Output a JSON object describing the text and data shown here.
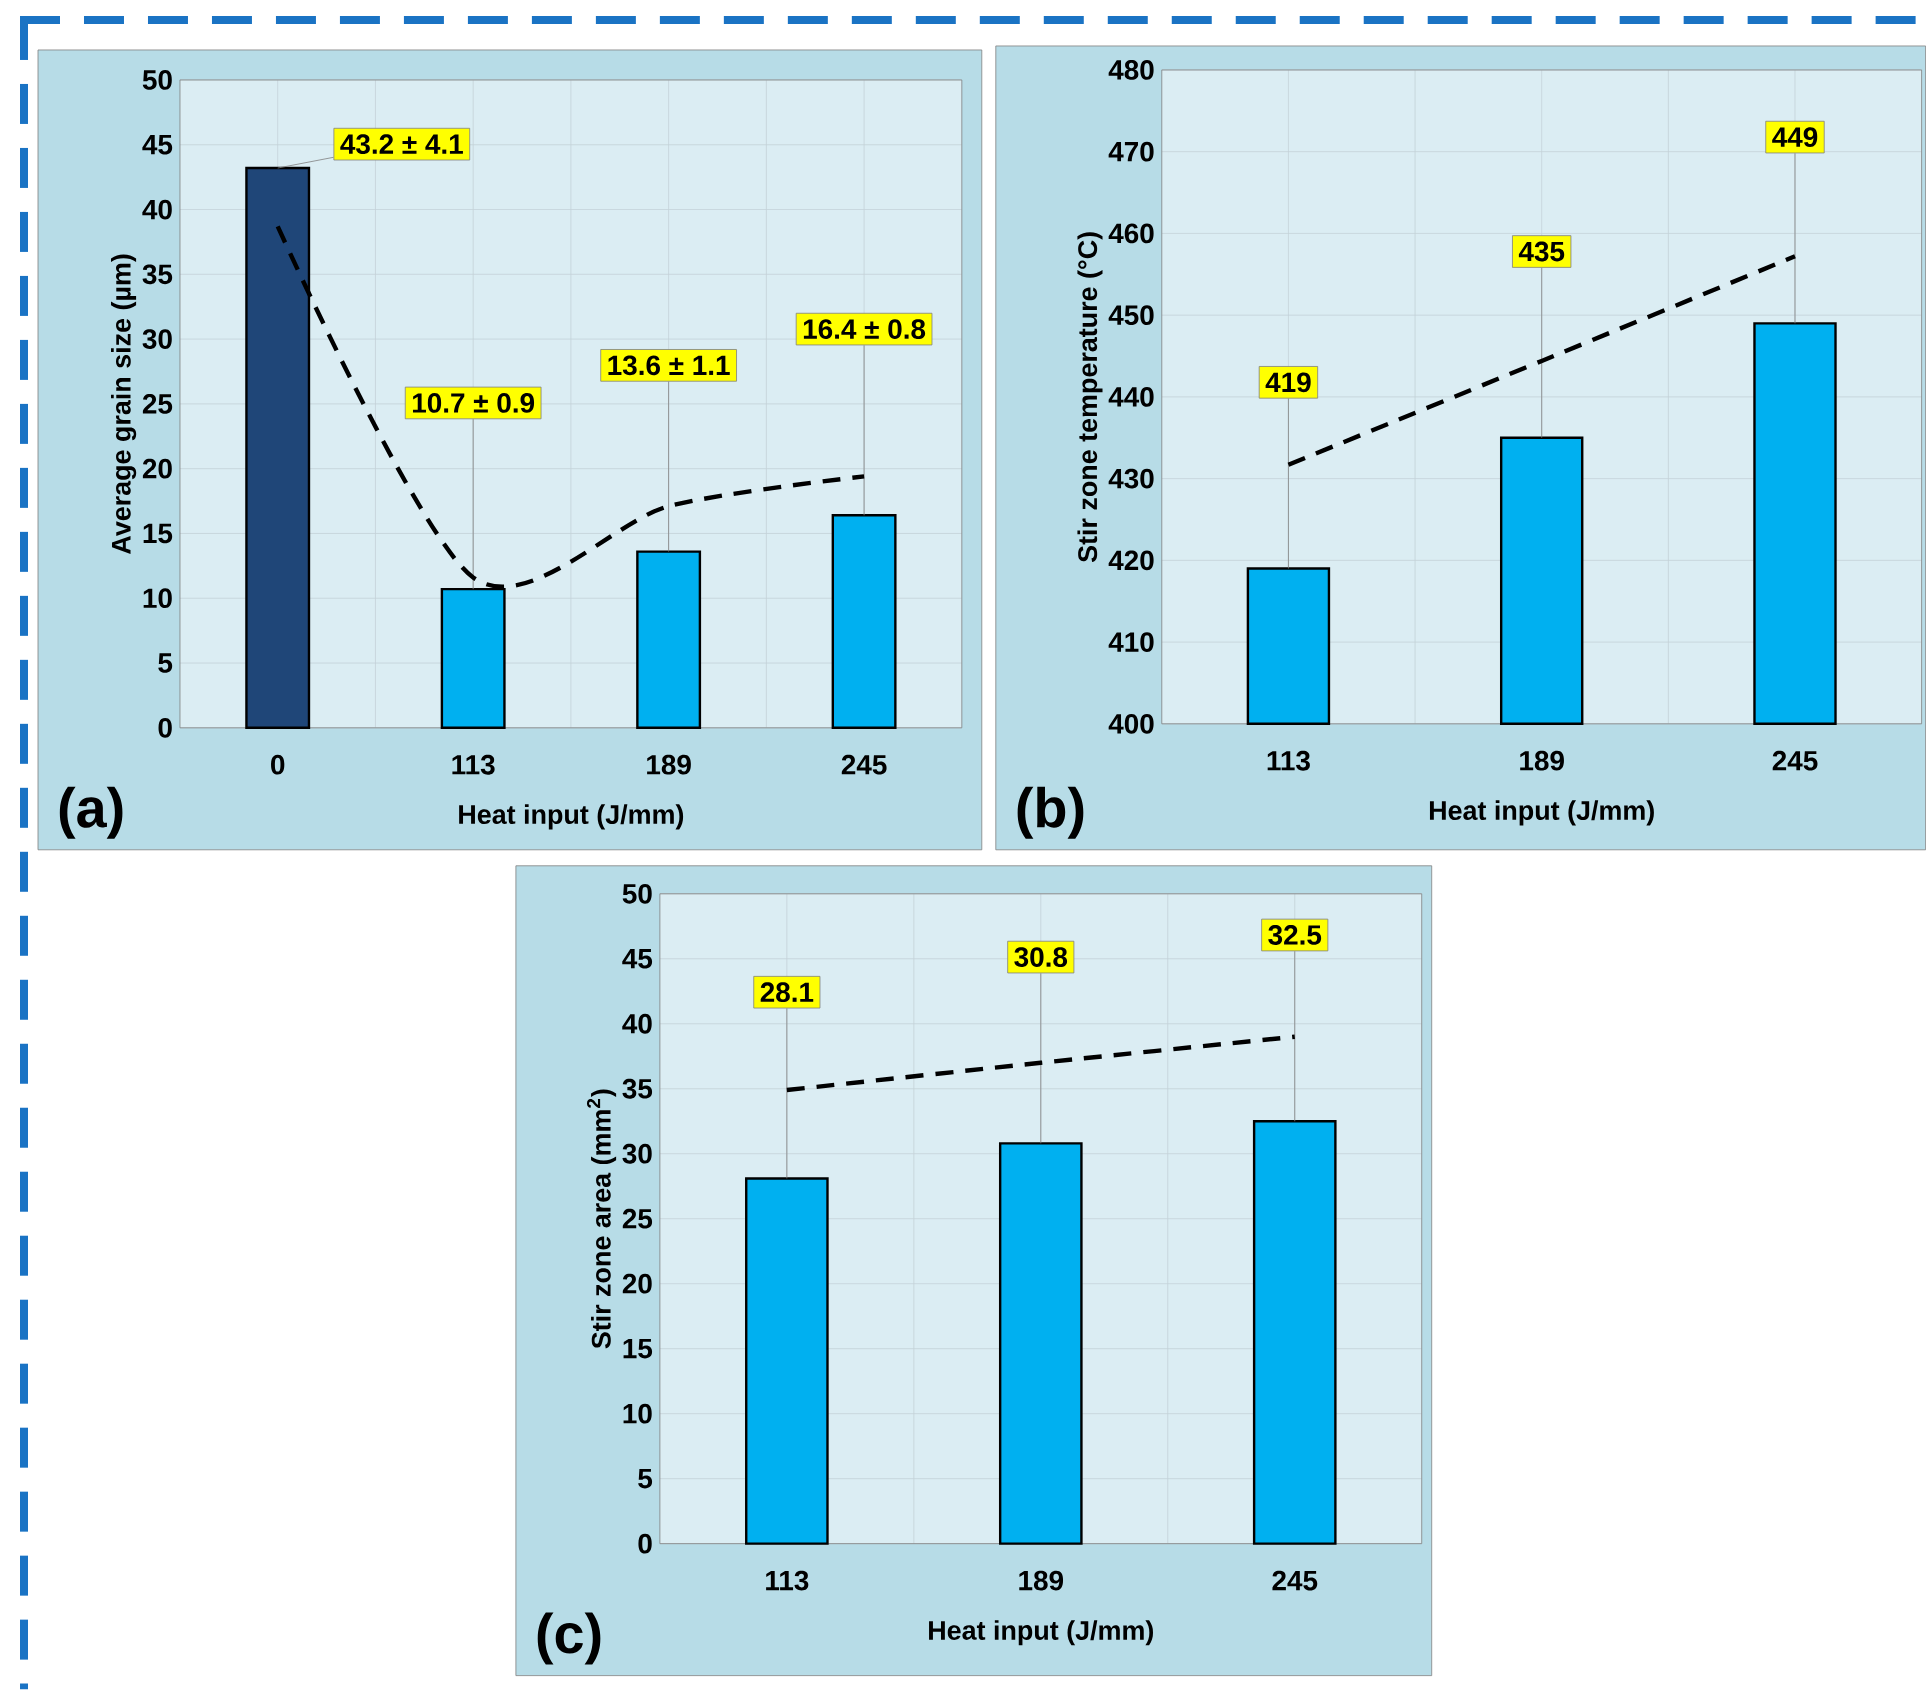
{
  "chart_data": [
    {
      "type": "bar",
      "xlabel": "Heat input (J/mm)",
      "ylabel": "Average grain size (µm)",
      "categories": [
        "0",
        "113",
        "189",
        "245"
      ],
      "ylim": [
        0,
        50
      ],
      "yticks": [
        0,
        5,
        10,
        15,
        20,
        25,
        30,
        35,
        40,
        45,
        50
      ],
      "grid": true,
      "annotations": [
        "(a)"
      ],
      "series": [
        {
          "values": [
            43.2,
            10.7,
            13.6,
            16.4
          ],
          "colors": [
            "#1f4678",
            "#00b0f0",
            "#00b0f0",
            "#00b0f0"
          ],
          "value_labels": [
            "43.2 ± 4.1",
            "10.7 ± 0.9",
            "13.6 ± 1.1",
            "16.4 ± 0.8"
          ]
        },
        {
          "type": "line",
          "values": [
            38.7,
            11.6,
            17.1,
            19.4
          ],
          "color": "#000000",
          "line_style": "dashed"
        }
      ]
    },
    {
      "type": "bar",
      "xlabel": "Heat input (J/mm)",
      "ylabel": "Stir zone temperature (°C)",
      "categories": [
        "113",
        "189",
        "245"
      ],
      "ylim": [
        400,
        480
      ],
      "yticks": [
        400,
        410,
        420,
        430,
        440,
        450,
        460,
        470,
        480
      ],
      "grid": true,
      "annotations": [
        "(b)"
      ],
      "series": [
        {
          "values": [
            419,
            435,
            449
          ],
          "colors": [
            "#00b0f0",
            "#00b0f0",
            "#00b0f0"
          ],
          "value_labels": [
            "419",
            "435",
            "449"
          ]
        },
        {
          "type": "line",
          "values": [
            431.7,
            444.4,
            457.2
          ],
          "color": "#000000",
          "line_style": "dashed"
        }
      ]
    },
    {
      "type": "bar",
      "xlabel": "Heat input (J/mm)",
      "ylabel": "Stir zone area (mm$^{2}$)",
      "categories": [
        "113",
        "189",
        "245"
      ],
      "ylim": [
        0,
        50
      ],
      "yticks": [
        0,
        5,
        10,
        15,
        20,
        25,
        30,
        35,
        40,
        45,
        50
      ],
      "grid": true,
      "annotations": [
        "(c)"
      ],
      "series": [
        {
          "values": [
            28.1,
            30.8,
            32.5
          ],
          "colors": [
            "#00b0f0",
            "#00b0f0",
            "#00b0f0"
          ],
          "value_labels": [
            "28.1",
            "30.8",
            "32.5"
          ]
        },
        {
          "type": "line",
          "values": [
            34.9,
            37.0,
            39.0
          ],
          "color": "#000000",
          "line_style": "dashed"
        }
      ]
    }
  ]
}
